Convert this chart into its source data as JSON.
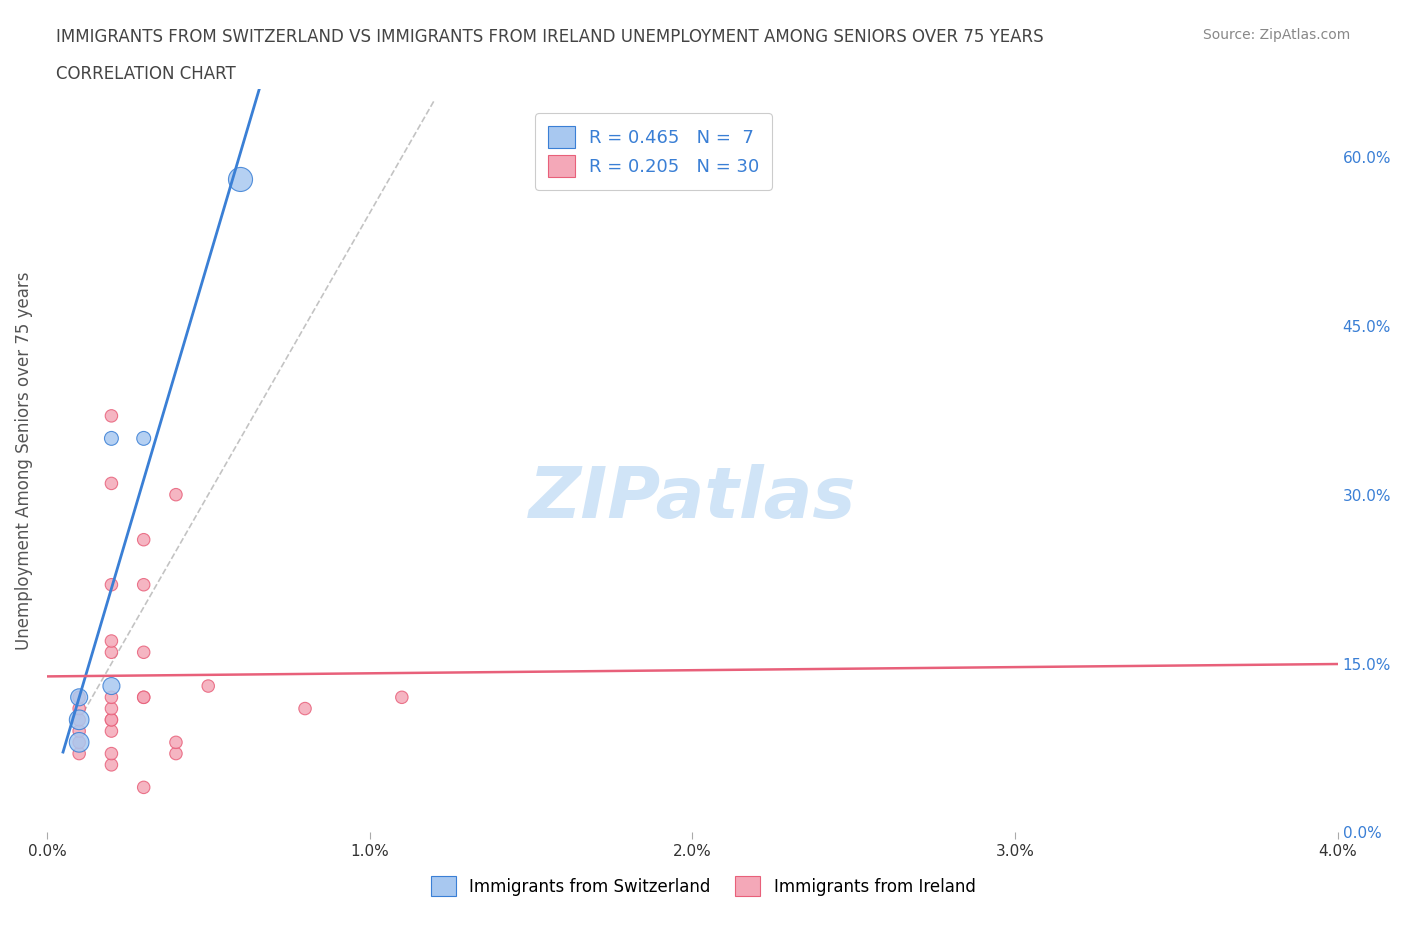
{
  "title_line1": "IMMIGRANTS FROM SWITZERLAND VS IMMIGRANTS FROM IRELAND UNEMPLOYMENT AMONG SENIORS OVER 75 YEARS",
  "title_line2": "CORRELATION CHART",
  "source": "Source: ZipAtlas.com",
  "ylabel": "Unemployment Among Seniors over 75 years",
  "xlim": [
    0.0,
    0.04
  ],
  "ylim": [
    0.0,
    0.66
  ],
  "xticks": [
    0.0,
    0.01,
    0.02,
    0.03,
    0.04
  ],
  "xticklabels": [
    "0.0%",
    "1.0%",
    "2.0%",
    "3.0%",
    "4.0%"
  ],
  "yticks_right": [
    0.0,
    0.15,
    0.3,
    0.45,
    0.6
  ],
  "ytick_right_labels": [
    "0.0%",
    "15.0%",
    "30.0%",
    "45.0%",
    "60.0%"
  ],
  "r_switzerland": 0.465,
  "n_switzerland": 7,
  "r_ireland": 0.205,
  "n_ireland": 30,
  "switzerland_color": "#a8c8f0",
  "ireland_color": "#f4a8b8",
  "switzerland_line_color": "#3a7fd5",
  "ireland_line_color": "#e8607a",
  "switzerland_points": [
    [
      0.001,
      0.1
    ],
    [
      0.001,
      0.08
    ],
    [
      0.001,
      0.12
    ],
    [
      0.002,
      0.13
    ],
    [
      0.002,
      0.35
    ],
    [
      0.003,
      0.35
    ],
    [
      0.006,
      0.58
    ]
  ],
  "ireland_points": [
    [
      0.001,
      0.07
    ],
    [
      0.001,
      0.08
    ],
    [
      0.001,
      0.09
    ],
    [
      0.001,
      0.1
    ],
    [
      0.001,
      0.11
    ],
    [
      0.001,
      0.12
    ],
    [
      0.002,
      0.06
    ],
    [
      0.002,
      0.07
    ],
    [
      0.002,
      0.09
    ],
    [
      0.002,
      0.1
    ],
    [
      0.002,
      0.1
    ],
    [
      0.002,
      0.11
    ],
    [
      0.002,
      0.12
    ],
    [
      0.002,
      0.16
    ],
    [
      0.002,
      0.17
    ],
    [
      0.002,
      0.22
    ],
    [
      0.002,
      0.31
    ],
    [
      0.002,
      0.37
    ],
    [
      0.003,
      0.04
    ],
    [
      0.003,
      0.12
    ],
    [
      0.003,
      0.12
    ],
    [
      0.003,
      0.16
    ],
    [
      0.003,
      0.22
    ],
    [
      0.003,
      0.26
    ],
    [
      0.004,
      0.07
    ],
    [
      0.004,
      0.08
    ],
    [
      0.004,
      0.3
    ],
    [
      0.005,
      0.13
    ],
    [
      0.008,
      0.11
    ],
    [
      0.011,
      0.12
    ]
  ],
  "switzerland_sizes": [
    200,
    200,
    150,
    150,
    100,
    100,
    300
  ],
  "ireland_sizes": [
    80,
    80,
    80,
    80,
    80,
    80,
    80,
    80,
    80,
    80,
    80,
    80,
    80,
    80,
    80,
    80,
    80,
    80,
    80,
    80,
    80,
    80,
    80,
    80,
    80,
    80,
    80,
    80,
    80,
    80
  ],
  "watermark": "ZIPatlas",
  "watermark_color": "#d0e4f7",
  "grid_color": "#e0e0e0",
  "background_color": "#ffffff"
}
